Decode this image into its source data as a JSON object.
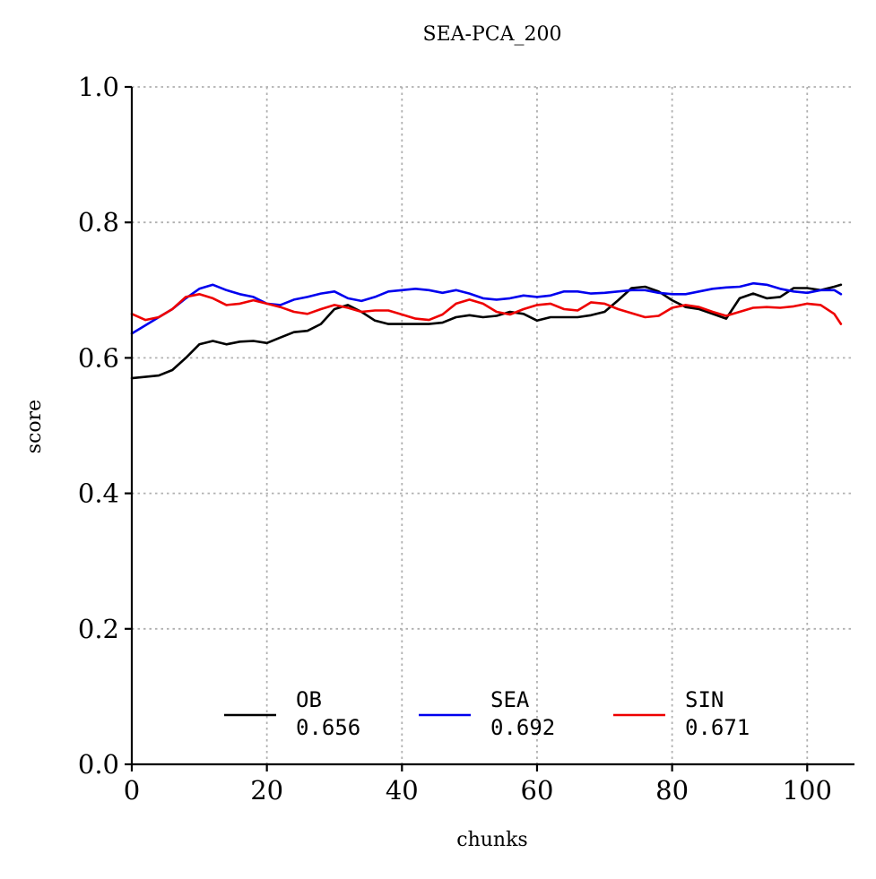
{
  "chart_data": {
    "type": "line",
    "title": "SEA-PCA_200",
    "xlabel": "chunks",
    "ylabel": "score",
    "xlim": [
      0,
      107
    ],
    "ylim": [
      0.0,
      1.0
    ],
    "xticks": [
      0,
      20,
      40,
      60,
      80,
      100
    ],
    "yticks": [
      0.0,
      0.2,
      0.4,
      0.6,
      0.8,
      1.0
    ],
    "xtick_labels": [
      "0",
      "20",
      "40",
      "60",
      "80",
      "100"
    ],
    "ytick_labels": [
      "0.0",
      "0.2",
      "0.4",
      "0.6",
      "0.8",
      "1.0"
    ],
    "grid": true,
    "legend_position": "bottom-center",
    "series": [
      {
        "name": "OB",
        "legend_value": "0.656",
        "color": "#000000",
        "x": [
          0,
          2,
          4,
          6,
          8,
          10,
          12,
          14,
          16,
          18,
          20,
          22,
          24,
          26,
          28,
          30,
          32,
          34,
          36,
          38,
          40,
          42,
          44,
          46,
          48,
          50,
          52,
          54,
          56,
          58,
          60,
          62,
          64,
          66,
          68,
          70,
          72,
          74,
          76,
          78,
          80,
          82,
          84,
          86,
          88,
          90,
          92,
          94,
          96,
          98,
          100,
          102,
          104,
          105
        ],
        "y": [
          0.57,
          0.572,
          0.574,
          0.582,
          0.6,
          0.62,
          0.625,
          0.62,
          0.624,
          0.625,
          0.622,
          0.63,
          0.638,
          0.64,
          0.65,
          0.672,
          0.678,
          0.668,
          0.655,
          0.65,
          0.65,
          0.65,
          0.65,
          0.652,
          0.66,
          0.663,
          0.66,
          0.662,
          0.668,
          0.665,
          0.655,
          0.66,
          0.66,
          0.66,
          0.663,
          0.668,
          0.685,
          0.703,
          0.705,
          0.698,
          0.685,
          0.675,
          0.672,
          0.665,
          0.658,
          0.688,
          0.695,
          0.688,
          0.69,
          0.703,
          0.703,
          0.7,
          0.705,
          0.708
        ]
      },
      {
        "name": "SEA",
        "legend_value": "0.692",
        "color": "#0000ee",
        "x": [
          0,
          2,
          4,
          6,
          8,
          10,
          12,
          14,
          16,
          18,
          20,
          22,
          24,
          26,
          28,
          30,
          32,
          34,
          36,
          38,
          40,
          42,
          44,
          46,
          48,
          50,
          52,
          54,
          56,
          58,
          60,
          62,
          64,
          66,
          68,
          70,
          72,
          74,
          76,
          78,
          80,
          82,
          84,
          86,
          88,
          90,
          92,
          94,
          96,
          98,
          100,
          102,
          104,
          105
        ],
        "y": [
          0.636,
          0.648,
          0.66,
          0.672,
          0.688,
          0.702,
          0.708,
          0.7,
          0.694,
          0.69,
          0.68,
          0.678,
          0.686,
          0.69,
          0.695,
          0.698,
          0.688,
          0.684,
          0.69,
          0.698,
          0.7,
          0.702,
          0.7,
          0.696,
          0.7,
          0.695,
          0.688,
          0.686,
          0.688,
          0.692,
          0.69,
          0.692,
          0.698,
          0.698,
          0.695,
          0.696,
          0.698,
          0.7,
          0.7,
          0.696,
          0.694,
          0.694,
          0.698,
          0.702,
          0.704,
          0.705,
          0.71,
          0.708,
          0.702,
          0.698,
          0.696,
          0.7,
          0.7,
          0.694
        ]
      },
      {
        "name": "SIN",
        "legend_value": "0.671",
        "color": "#ee0000",
        "x": [
          0,
          2,
          4,
          6,
          8,
          10,
          12,
          14,
          16,
          18,
          20,
          22,
          24,
          26,
          28,
          30,
          32,
          34,
          36,
          38,
          40,
          42,
          44,
          46,
          48,
          50,
          52,
          54,
          56,
          58,
          60,
          62,
          64,
          66,
          68,
          70,
          72,
          74,
          76,
          78,
          80,
          82,
          84,
          86,
          88,
          90,
          92,
          94,
          96,
          98,
          100,
          102,
          104,
          105
        ],
        "y": [
          0.665,
          0.656,
          0.66,
          0.672,
          0.69,
          0.694,
          0.688,
          0.678,
          0.68,
          0.685,
          0.68,
          0.675,
          0.668,
          0.665,
          0.672,
          0.678,
          0.674,
          0.668,
          0.67,
          0.67,
          0.664,
          0.658,
          0.656,
          0.664,
          0.68,
          0.686,
          0.68,
          0.668,
          0.664,
          0.672,
          0.678,
          0.68,
          0.672,
          0.67,
          0.682,
          0.68,
          0.672,
          0.666,
          0.66,
          0.662,
          0.674,
          0.678,
          0.675,
          0.668,
          0.662,
          0.668,
          0.674,
          0.675,
          0.674,
          0.676,
          0.68,
          0.678,
          0.665,
          0.65
        ]
      }
    ]
  }
}
